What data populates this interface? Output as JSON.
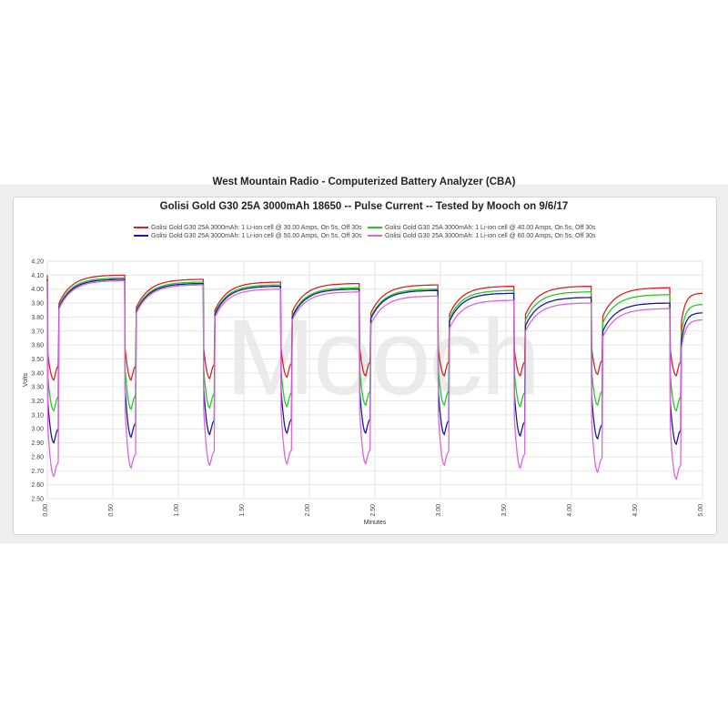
{
  "chart_data": {
    "type": "line",
    "title": "West Mountain Radio - Computerized Battery Analyzer (CBA)",
    "subtitle": "Golisi Gold G30 25A 3000mAh 18650 -- Pulse Current -- Tested by Mooch on 9/6/17",
    "xlabel": "Minutes",
    "ylabel": "Volts",
    "watermark": "Mooch",
    "xlim": [
      0,
      5
    ],
    "ylim": [
      2.5,
      4.2
    ],
    "grid": true,
    "legend_position": "top",
    "x_ticks": [
      "0.00",
      "0.50",
      "1.00",
      "1.50",
      "2.00",
      "2.50",
      "3.00",
      "3.50",
      "4.00",
      "4.50",
      "5.00"
    ],
    "y_ticks": [
      "2.50",
      "2.60",
      "2.70",
      "2.80",
      "2.90",
      "3.00",
      "3.10",
      "3.20",
      "3.30",
      "3.40",
      "3.50",
      "3.60",
      "3.70",
      "3.80",
      "3.90",
      "4.00",
      "4.10",
      "4.20"
    ],
    "pulse_starts_minutes": [
      0,
      0.59,
      1.19,
      1.78,
      2.38,
      2.98,
      3.56,
      4.15,
      4.75
    ],
    "series": [
      {
        "name": "Golisi Gold G30 25A 3000mAh: 1 Li-ion cell @ 30.00 Amps, On 5s, Off 30s",
        "color": "#e02020",
        "pulse_min_volts": [
          3.35,
          3.35,
          3.36,
          3.37,
          3.38,
          3.38,
          3.38,
          3.39,
          3.38
        ],
        "rest_peak_volts": [
          4.1,
          4.07,
          4.05,
          4.04,
          4.03,
          4.02,
          4.02,
          4.01,
          3.97
        ]
      },
      {
        "name": "Golisi Gold G30 25A 3000mAh: 1 Li-ion cell @ 40.00 Amps, On 5s, Off 30s",
        "color": "#22cc22",
        "pulse_min_volts": [
          3.13,
          3.14,
          3.15,
          3.16,
          3.17,
          3.17,
          3.16,
          3.17,
          3.13
        ],
        "rest_peak_volts": [
          4.08,
          4.05,
          4.03,
          4.01,
          4.0,
          3.99,
          3.98,
          3.96,
          3.89
        ]
      },
      {
        "name": "Golisi Gold G30 25A 3000mAh: 1 Li-ion cell @ 50.00 Amps, On 5s, Off 30s",
        "color": "#1a1aa0",
        "pulse_min_volts": [
          2.9,
          2.94,
          2.96,
          2.97,
          2.97,
          2.96,
          2.95,
          2.93,
          2.89
        ],
        "rest_peak_volts": [
          4.07,
          4.04,
          4.02,
          4.0,
          3.99,
          3.97,
          3.94,
          3.9,
          3.83
        ]
      },
      {
        "name": "Golisi Gold G30 25A 3000mAh: 1 Li-ion cell @ 60.00 Amps, On 5s, Off 30s",
        "color": "#dd66dd",
        "pulse_min_volts": [
          2.66,
          2.72,
          2.74,
          2.75,
          2.75,
          2.74,
          2.72,
          2.69,
          2.64
        ],
        "rest_peak_volts": [
          4.06,
          4.03,
          4.0,
          3.98,
          3.95,
          3.92,
          3.9,
          3.86,
          3.78
        ]
      }
    ]
  }
}
